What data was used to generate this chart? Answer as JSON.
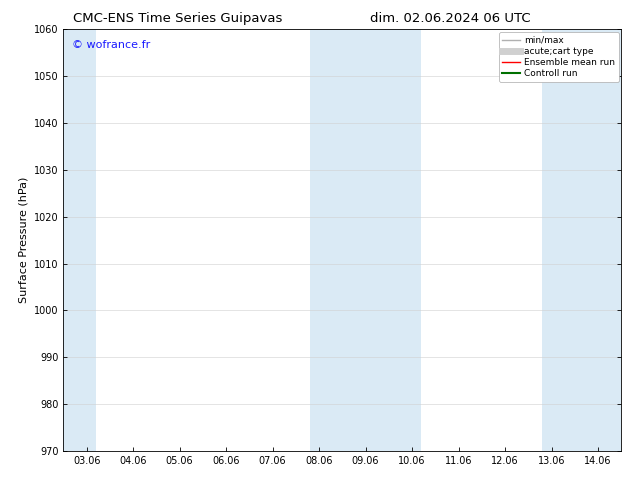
{
  "title_left": "CMC-ENS Time Series Guipavas",
  "title_right": "dim. 02.06.2024 06 UTC",
  "ylabel": "Surface Pressure (hPa)",
  "ylim": [
    970,
    1060
  ],
  "yticks": [
    970,
    980,
    990,
    1000,
    1010,
    1020,
    1030,
    1040,
    1050,
    1060
  ],
  "x_tick_labels": [
    "03.06",
    "04.06",
    "05.06",
    "06.06",
    "07.06",
    "08.06",
    "09.06",
    "10.06",
    "11.06",
    "12.06",
    "13.06",
    "14.06"
  ],
  "x_tick_positions": [
    0,
    1,
    2,
    3,
    4,
    5,
    6,
    7,
    8,
    9,
    10,
    11
  ],
  "shaded_bands": [
    {
      "xmin": -0.5,
      "xmax": 0.2
    },
    {
      "xmin": 4.8,
      "xmax": 7.2
    },
    {
      "xmin": 9.8,
      "xmax": 11.5
    }
  ],
  "shaded_color": "#daeaf5",
  "background_color": "#ffffff",
  "watermark_text": "© wofrance.fr",
  "watermark_color": "#1a1aff",
  "legend_items": [
    {
      "label": "min/max",
      "color": "#b0b0b0",
      "lw": 1.0
    },
    {
      "label": "acute;cart type",
      "color": "#d0d0d0",
      "lw": 5.0
    },
    {
      "label": "Ensemble mean run",
      "color": "#ff0000",
      "lw": 1.0
    },
    {
      "label": "Controll run",
      "color": "#007000",
      "lw": 1.5
    }
  ],
  "grid_color": "#d0d0d0",
  "spine_color": "#000000",
  "title_fontsize": 9.5,
  "ylabel_fontsize": 8,
  "tick_fontsize": 7,
  "watermark_fontsize": 8,
  "legend_fontsize": 6.5
}
